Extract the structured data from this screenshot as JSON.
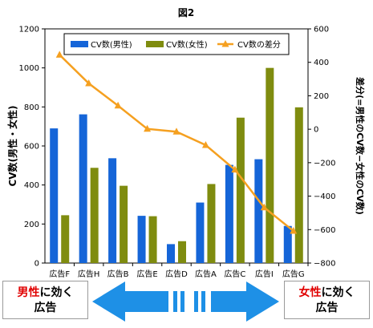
{
  "chart_data": {
    "type": "bar",
    "title": "図2",
    "categories": [
      "広告F",
      "広告H",
      "広告B",
      "広告E",
      "広告D",
      "広告A",
      "広告C",
      "広告I",
      "広告G"
    ],
    "series": [
      {
        "name": "CV数(男性)",
        "color": "#1565d8",
        "type": "bar",
        "axis": "left",
        "values": [
          690,
          762,
          537,
          242,
          97,
          310,
          503,
          532,
          190
        ]
      },
      {
        "name": "CV数(女性)",
        "color": "#7f8c0f",
        "type": "bar",
        "axis": "left",
        "values": [
          245,
          488,
          396,
          240,
          112,
          405,
          745,
          1000,
          798
        ]
      },
      {
        "name": "CV数の差分",
        "color": "#f5a020",
        "type": "line",
        "axis": "right",
        "values": [
          445,
          274,
          141,
          2,
          -15,
          -95,
          -242,
          -468,
          -608
        ]
      }
    ],
    "ylabel": "CV数(男性・女性)",
    "y2label": "差分(=男性のCV数−女性のCV数)",
    "ylim": [
      0,
      1200
    ],
    "y_ticks": [
      "0",
      "200",
      "400",
      "600",
      "800",
      "1000",
      "1200"
    ],
    "y2lim": [
      -800,
      600
    ],
    "y2_ticks": [
      "−800",
      "−600",
      "−400",
      "−200",
      "0",
      "200",
      "400",
      "600"
    ],
    "grid": false,
    "legend": "top-center"
  },
  "bottom": {
    "left_box": {
      "highlight": "男性",
      "rest": "に効く",
      "line2": "広告"
    },
    "right_box": {
      "highlight": "女性",
      "rest": "に効く",
      "line2": "広告"
    },
    "arrow_color": "#1e90e6"
  }
}
